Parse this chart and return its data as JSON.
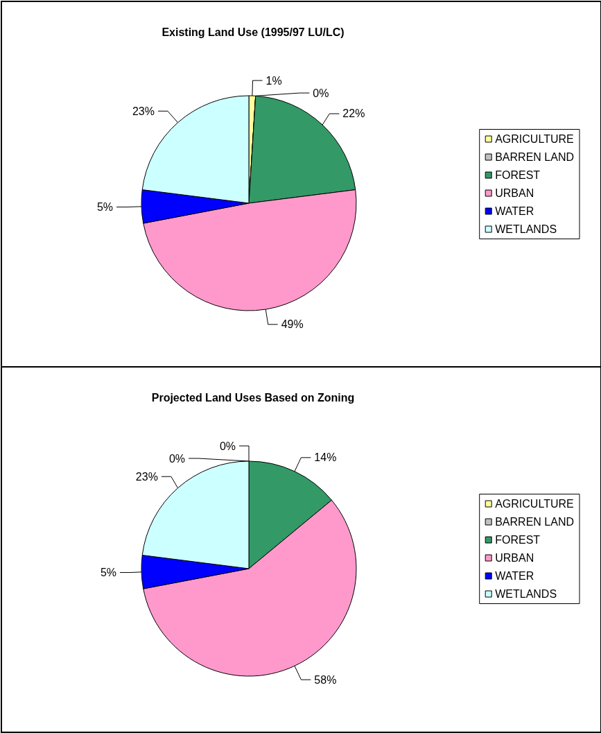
{
  "chart_data": [
    {
      "type": "pie",
      "title": "Existing Land Use (1995/97 LU/LC)",
      "categories": [
        "AGRICULTURE",
        "BARREN LAND",
        "FOREST",
        "URBAN",
        "WATER",
        "WETLANDS"
      ],
      "values": [
        1,
        0,
        22,
        49,
        5,
        23
      ],
      "value_labels": [
        "1%",
        "0%",
        "22%",
        "49%",
        "5%",
        "23%"
      ],
      "colors": [
        "#ffff99",
        "#c0c0c0",
        "#339966",
        "#ff99cc",
        "#0000ff",
        "#ccffff"
      ],
      "legend": "right"
    },
    {
      "type": "pie",
      "title": "Projected Land Uses Based on Zoning",
      "categories": [
        "AGRICULTURE",
        "BARREN LAND",
        "FOREST",
        "URBAN",
        "WATER",
        "WETLANDS"
      ],
      "values": [
        0,
        0,
        14,
        58,
        5,
        23
      ],
      "value_labels": [
        "0%",
        "0%",
        "14%",
        "58%",
        "5%",
        "23%"
      ],
      "colors": [
        "#ffff99",
        "#c0c0c0",
        "#339966",
        "#ff99cc",
        "#0000ff",
        "#ccffff"
      ],
      "legend": "right"
    }
  ]
}
